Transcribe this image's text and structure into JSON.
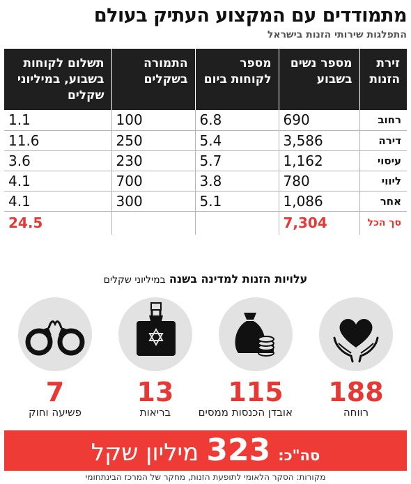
{
  "title": "מתמודדים עם המקצוע העתיק בעולם",
  "subtitle": "התפלגות שירותי הזנות בישראל",
  "table": {
    "headers": {
      "type": "זירת הזנות",
      "women": "מספר נשים בשבוע",
      "clients": "מספר לקוחות ביום",
      "price": "התמורה בשקלים",
      "pay": "תשלום לקוחות בשבוע, במיליוני שקלים"
    },
    "rows": [
      {
        "type": "רחוב",
        "women": "690",
        "clients": "6.8",
        "price": "100",
        "pay": "1.1"
      },
      {
        "type": "דירה",
        "women": "3,586",
        "clients": "5.4",
        "price": "250",
        "pay": "11.6"
      },
      {
        "type": "עיסוי",
        "women": "1,162",
        "clients": "5.7",
        "price": "230",
        "pay": "3.6"
      },
      {
        "type": "ליווי",
        "women": "780",
        "clients": "3.8",
        "price": "700",
        "pay": "4.1"
      },
      {
        "type": "אחר",
        "women": "1,086",
        "clients": "5.1",
        "price": "300",
        "pay": "4.1"
      }
    ],
    "total": {
      "type": "סך הכל",
      "women": "7,304",
      "clients": "",
      "price": "",
      "pay": "24.5"
    }
  },
  "costs": {
    "title_bold": "עלויות הזנות למדינה בשנה",
    "title_unit": "במיליוני שקלים",
    "items": [
      {
        "value": "188",
        "label": "רווחה",
        "icon": "heart-hands-icon"
      },
      {
        "value": "115",
        "label": "אובדן הכנסות ממסים",
        "icon": "money-bag-coins-icon"
      },
      {
        "value": "13",
        "label": "בריאות",
        "icon": "medical-bag-icon"
      },
      {
        "value": "7",
        "label": "פשיעה וחוק",
        "icon": "handcuffs-icon"
      }
    ]
  },
  "total_bar": {
    "prefix": "סה\"כ:",
    "amount": "323",
    "unit": "מיליון שקל"
  },
  "sources": "מקורות: הסקר הלאומי לתופעת הזנות, מחקר של המרכז הבינתחומי",
  "colors": {
    "accent": "#ef3b36",
    "header_bg": "#1f1f1f",
    "circle_bg": "#e2e2e2"
  }
}
